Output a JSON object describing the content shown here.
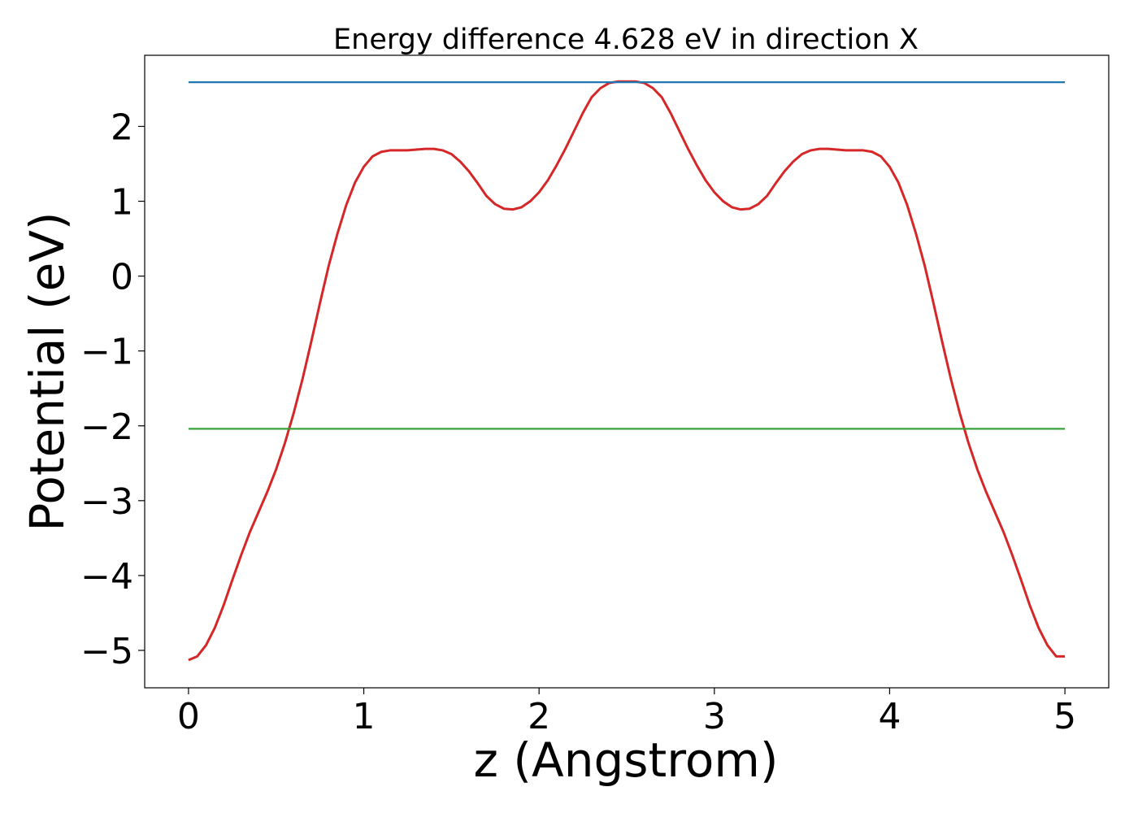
{
  "chart_data": {
    "type": "line",
    "title": "Energy difference 4.628 eV in direction X",
    "xlabel": "z (Angstrom)",
    "ylabel": "Potential (eV)",
    "xlim": [
      -0.25,
      5.25
    ],
    "ylim": [
      -5.5,
      2.95
    ],
    "xticks": [
      {
        "value": 0,
        "label": "0"
      },
      {
        "value": 1,
        "label": "1"
      },
      {
        "value": 2,
        "label": "2"
      },
      {
        "value": 3,
        "label": "3"
      },
      {
        "value": 4,
        "label": "4"
      },
      {
        "value": 5,
        "label": "5"
      }
    ],
    "yticks": [
      {
        "value": 2,
        "label": "2"
      },
      {
        "value": 1,
        "label": "1"
      },
      {
        "value": 0,
        "label": "0"
      },
      {
        "value": -1,
        "label": "−1"
      },
      {
        "value": -2,
        "label": "−2"
      },
      {
        "value": -3,
        "label": "−3"
      },
      {
        "value": -4,
        "label": "−4"
      },
      {
        "value": -5,
        "label": "−5"
      }
    ],
    "grid": false,
    "series": [
      {
        "color": "#d62728",
        "x": [
          0.0,
          0.05,
          0.1,
          0.15,
          0.2,
          0.25,
          0.3,
          0.35,
          0.4,
          0.45,
          0.5,
          0.55,
          0.6,
          0.65,
          0.7,
          0.75,
          0.8,
          0.85,
          0.9,
          0.95,
          1.0,
          1.05,
          1.1,
          1.15,
          1.2,
          1.25,
          1.3,
          1.35,
          1.4,
          1.45,
          1.5,
          1.55,
          1.6,
          1.65,
          1.7,
          1.75,
          1.8,
          1.85,
          1.9,
          1.95,
          2.0,
          2.05,
          2.1,
          2.15,
          2.2,
          2.25,
          2.3,
          2.35,
          2.4,
          2.45,
          2.5,
          2.55,
          2.6,
          2.65,
          2.7,
          2.75,
          2.8,
          2.85,
          2.9,
          2.95,
          3.0,
          3.05,
          3.1,
          3.15,
          3.2,
          3.25,
          3.3,
          3.35,
          3.4,
          3.45,
          3.5,
          3.55,
          3.6,
          3.65,
          3.7,
          3.75,
          3.8,
          3.85,
          3.9,
          3.95,
          4.0,
          4.05,
          4.1,
          4.15,
          4.2,
          4.25,
          4.3,
          4.35,
          4.4,
          4.45,
          4.5,
          4.55,
          4.6,
          4.65,
          4.7,
          4.75,
          4.8,
          4.85,
          4.9,
          4.95,
          5.0
        ],
        "y": [
          -5.13,
          -5.08,
          -4.93,
          -4.7,
          -4.4,
          -4.06,
          -3.73,
          -3.42,
          -3.15,
          -2.88,
          -2.58,
          -2.23,
          -1.83,
          -1.38,
          -0.88,
          -0.36,
          0.14,
          0.57,
          0.95,
          1.25,
          1.46,
          1.6,
          1.66,
          1.68,
          1.68,
          1.68,
          1.69,
          1.7,
          1.7,
          1.68,
          1.63,
          1.53,
          1.4,
          1.24,
          1.07,
          0.96,
          0.9,
          0.89,
          0.92,
          1.0,
          1.12,
          1.28,
          1.48,
          1.7,
          1.94,
          2.18,
          2.39,
          2.51,
          2.58,
          2.6,
          2.6,
          2.6,
          2.58,
          2.51,
          2.39,
          2.18,
          1.94,
          1.7,
          1.48,
          1.28,
          1.12,
          1.0,
          0.92,
          0.89,
          0.9,
          0.96,
          1.07,
          1.24,
          1.4,
          1.53,
          1.63,
          1.68,
          1.7,
          1.7,
          1.69,
          1.68,
          1.68,
          1.68,
          1.66,
          1.6,
          1.46,
          1.25,
          0.95,
          0.57,
          0.14,
          -0.36,
          -0.88,
          -1.38,
          -1.83,
          -2.23,
          -2.58,
          -2.88,
          -3.15,
          -3.42,
          -3.73,
          -4.06,
          -4.4,
          -4.7,
          -4.93,
          -5.08,
          -5.08
        ]
      },
      {
        "color": "#1f77b4",
        "x": [
          0.0,
          5.0
        ],
        "y": [
          2.59,
          2.59
        ]
      },
      {
        "color": "#2ca02c",
        "x": [
          0.0,
          5.0
        ],
        "y": [
          -2.04,
          -2.04
        ]
      }
    ]
  }
}
